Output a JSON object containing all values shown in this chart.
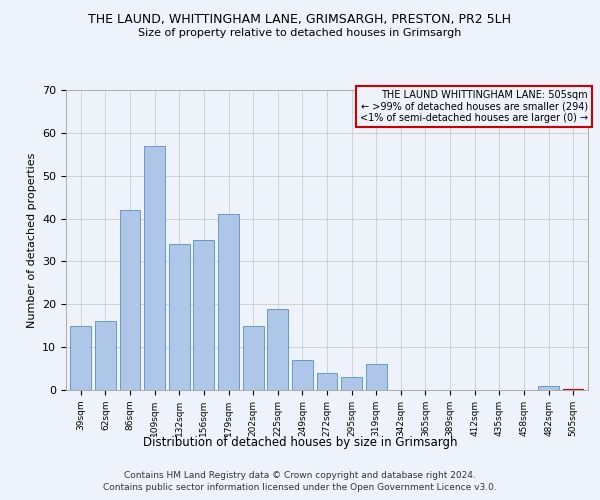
{
  "title": "THE LAUND, WHITTINGHAM LANE, GRIMSARGH, PRESTON, PR2 5LH",
  "subtitle": "Size of property relative to detached houses in Grimsargh",
  "xlabel": "Distribution of detached houses by size in Grimsargh",
  "ylabel": "Number of detached properties",
  "categories": [
    "39sqm",
    "62sqm",
    "86sqm",
    "109sqm",
    "132sqm",
    "156sqm",
    "179sqm",
    "202sqm",
    "225sqm",
    "249sqm",
    "272sqm",
    "295sqm",
    "319sqm",
    "342sqm",
    "365sqm",
    "389sqm",
    "412sqm",
    "435sqm",
    "458sqm",
    "482sqm",
    "505sqm"
  ],
  "values": [
    15,
    16,
    42,
    57,
    34,
    35,
    41,
    15,
    19,
    7,
    4,
    3,
    6,
    0,
    0,
    0,
    0,
    0,
    0,
    1,
    0
  ],
  "bar_color": "#aec6e8",
  "bar_edge_color": "#5a8fc2",
  "highlight_bar_index": 20,
  "highlight_bar_edge_color": "#cc0000",
  "ylim": [
    0,
    70
  ],
  "yticks": [
    0,
    10,
    20,
    30,
    40,
    50,
    60,
    70
  ],
  "grid_color": "#cccccc",
  "background_color": "#eef2fa",
  "annotation_text": "THE LAUND WHITTINGHAM LANE: 505sqm\n← >99% of detached houses are smaller (294)\n<1% of semi-detached houses are larger (0) →",
  "annotation_box_edge_color": "#cc0000",
  "footer_line1": "Contains HM Land Registry data © Crown copyright and database right 2024.",
  "footer_line2": "Contains public sector information licensed under the Open Government Licence v3.0."
}
